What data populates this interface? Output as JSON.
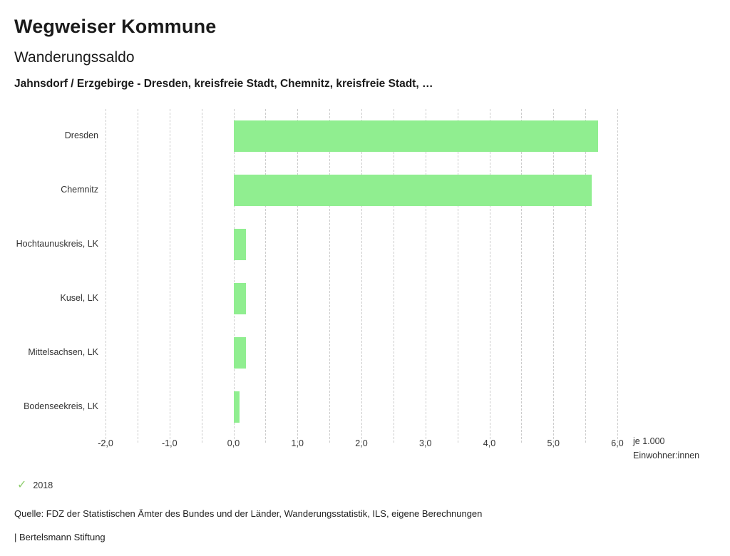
{
  "header": {
    "title": "Wegweiser Kommune",
    "subtitle": "Wanderungssaldo",
    "description": "Jahnsdorf / Erzgebirge - Dresden, kreisfreie Stadt, Chemnitz, kreisfreie Stadt, …"
  },
  "chart_data": {
    "type": "bar",
    "orientation": "horizontal",
    "title": "Wanderungssaldo",
    "categories": [
      "Dresden",
      "Chemnitz",
      "Hochtaunuskreis, LK",
      "Kusel, LK",
      "Mittelsachsen, LK",
      "Bodenseekreis, LK"
    ],
    "values": [
      5.7,
      5.6,
      0.2,
      0.2,
      0.2,
      0.1
    ],
    "xlim": [
      -2.0,
      6.0
    ],
    "grid_step": 0.5,
    "grid": true,
    "x_ticks": [
      {
        "value": -2,
        "label": "-2,0"
      },
      {
        "value": -1,
        "label": "-1,0"
      },
      {
        "value": 0,
        "label": "0,0"
      },
      {
        "value": 1,
        "label": "1,0"
      },
      {
        "value": 2,
        "label": "2,0"
      },
      {
        "value": 3,
        "label": "3,0"
      },
      {
        "value": 4,
        "label": "4,0"
      },
      {
        "value": 5,
        "label": "5,0"
      },
      {
        "value": 6,
        "label": "6,0"
      }
    ],
    "axis_unit_label": "je 1.000 Einwohner:innen",
    "bar_color": "#90ee90",
    "gridline_color": "#cccccc"
  },
  "legend": {
    "items": [
      {
        "label": "2018",
        "color": "#8fce6e",
        "icon": "check"
      }
    ]
  },
  "footer": {
    "source": "Quelle: FDZ der Statistischen Ämter des Bundes und der Länder, Wanderungsstatistik, ILS, eigene Berechnungen",
    "brand": "| Bertelsmann Stiftung"
  }
}
